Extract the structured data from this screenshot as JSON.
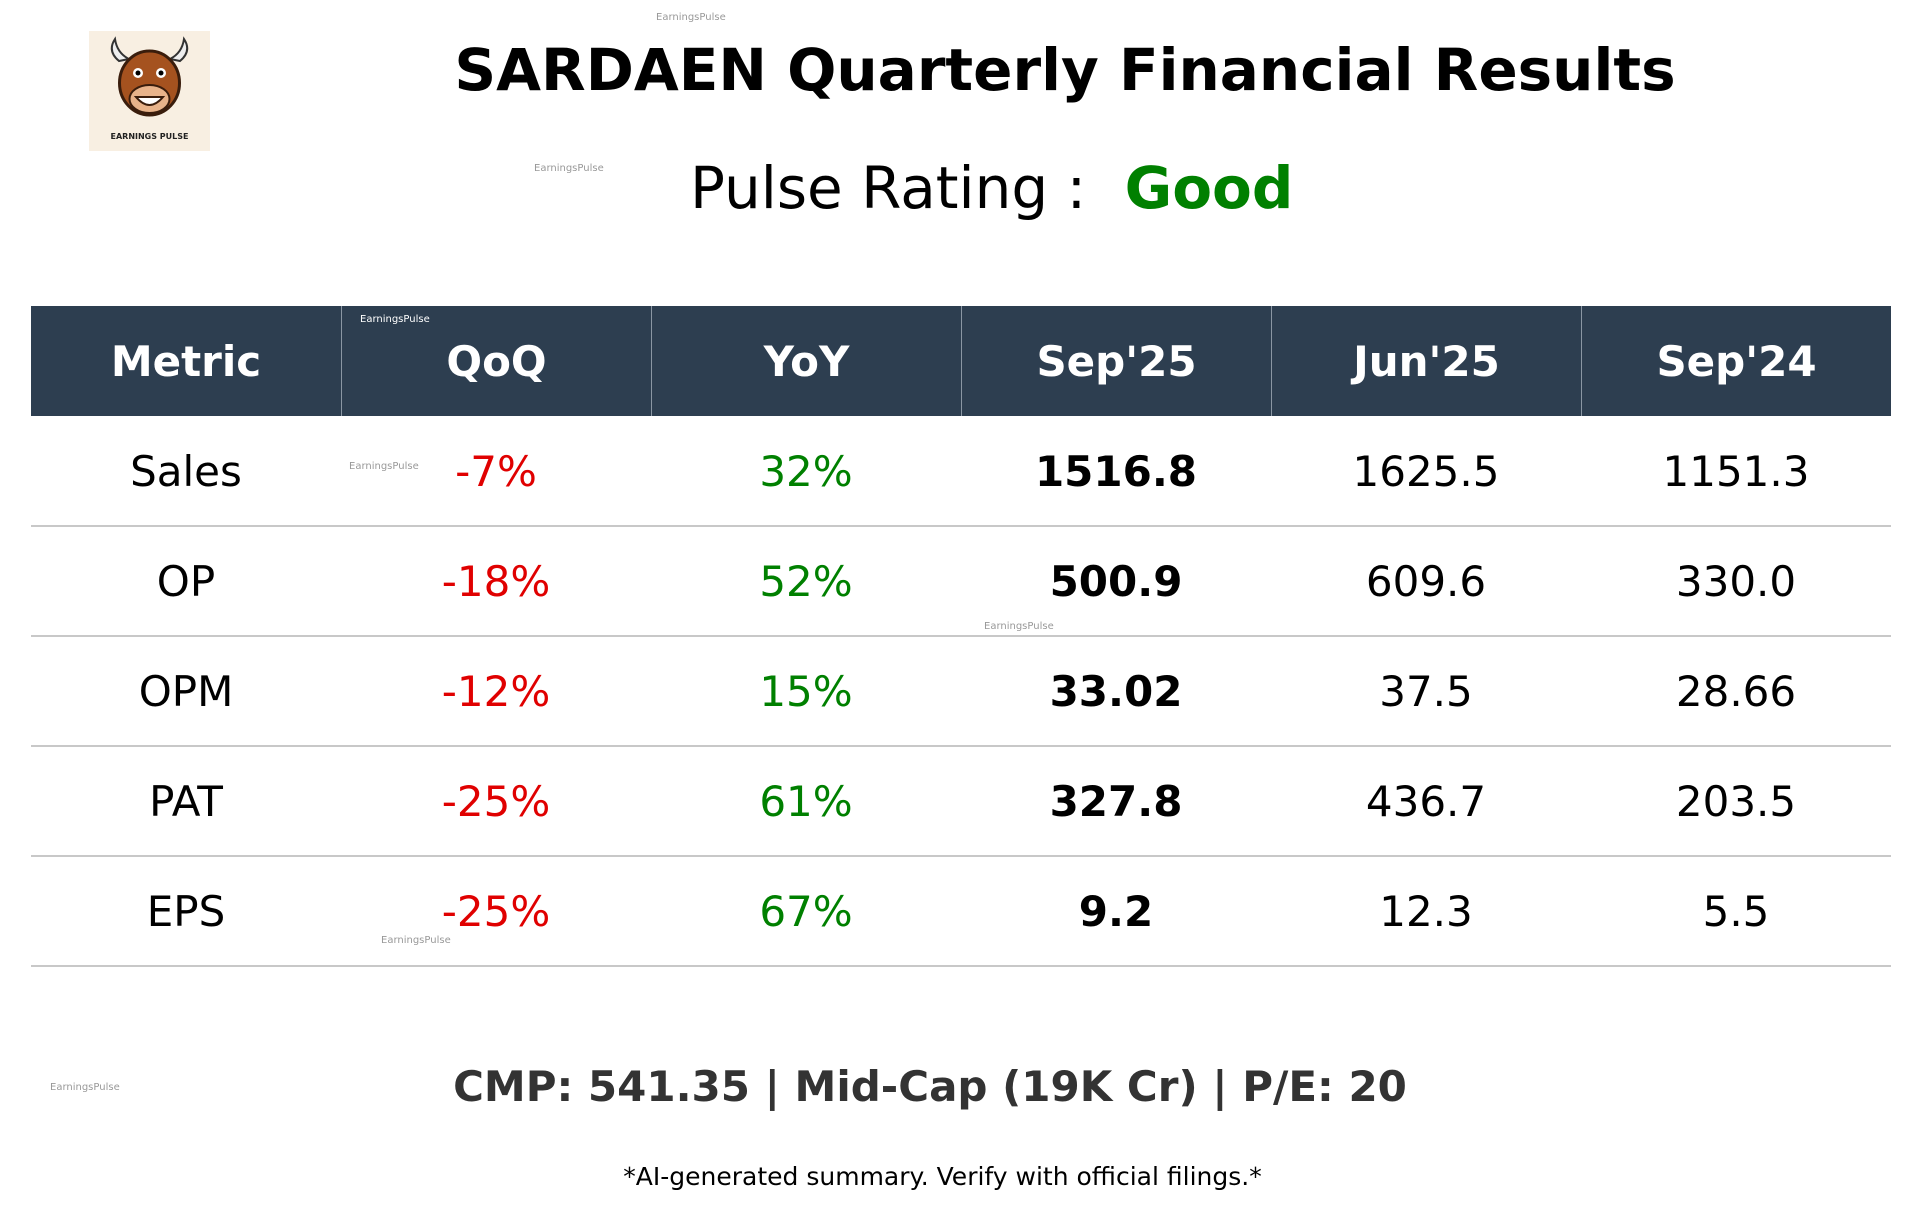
{
  "header": {
    "title": "SARDAEN Quarterly Financial Results",
    "rating_label": "Pulse Rating :",
    "rating": "Good"
  },
  "logo": {
    "text": "EARNINGS PULSE"
  },
  "watermark": "EarningsPulse",
  "table": {
    "columns": [
      "Metric",
      "QoQ",
      "YoY",
      "Sep'25",
      "Jun'25",
      "Sep'24"
    ],
    "rows": [
      [
        "Sales",
        "-7%",
        "32%",
        "1516.8",
        "1625.5",
        "1151.3"
      ],
      [
        "OP",
        "-18%",
        "52%",
        "500.9",
        "609.6",
        "330.0"
      ],
      [
        "OPM",
        "-12%",
        "15%",
        "33.02",
        "37.5",
        "28.66"
      ],
      [
        "PAT",
        "-25%",
        "61%",
        "327.8",
        "436.7",
        "203.5"
      ],
      [
        "EPS",
        "-25%",
        "67%",
        "9.2",
        "12.3",
        "5.5"
      ]
    ]
  },
  "footer": {
    "cmp": "CMP: 541.35 | Mid-Cap (19K Cr) | P/E: 20",
    "disclaimer": "*AI-generated summary. Verify with official filings.*"
  }
}
